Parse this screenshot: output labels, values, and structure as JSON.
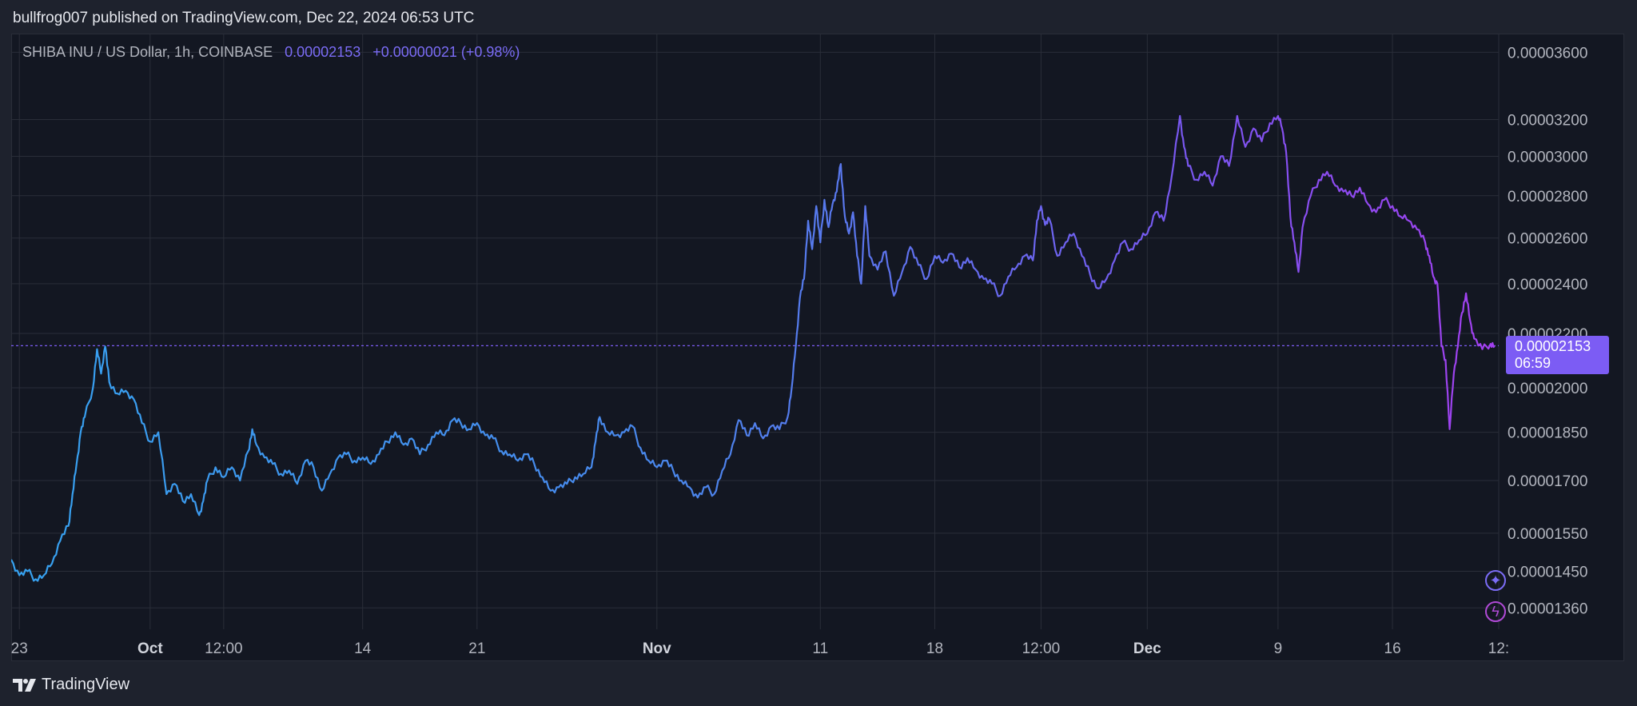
{
  "header": {
    "published_text": "bullfrog007 published on TradingView.com, Dec 22, 2024 06:53 UTC"
  },
  "legend": {
    "symbol": "SHIBA INU / US Dollar, 1h, COINBASE",
    "price": "0.00002153",
    "change": "+0.00000021 (+0.98%)",
    "color": "#7b6cf6"
  },
  "last_price_badge": {
    "price": "0.00002153",
    "countdown": "06:59",
    "color": "#7c5cf4"
  },
  "footer": {
    "brand": "TradingView"
  },
  "icons": [
    "sparkle-icon",
    "lightning-icon"
  ],
  "colors": {
    "background": "#131722",
    "line_start": "#36a2f0",
    "line_mid": "#7b55f0",
    "line_end": "#a53ff0"
  },
  "chart_data": {
    "type": "line",
    "scale": "log",
    "y_ticks": [
      "0.00003600",
      "0.00003200",
      "0.00003000",
      "0.00002800",
      "0.00002600",
      "0.00002400",
      "0.00002200",
      "0.00002000",
      "0.00001850",
      "0.00001700",
      "0.00001550",
      "0.00001450",
      "0.00001360"
    ],
    "ylim": [
      1.31e-05,
      3.72e-05
    ],
    "x_ticks": [
      {
        "label": "23",
        "date": "2024-09-23",
        "bold": false
      },
      {
        "label": "Oct",
        "date": "2024-10-01",
        "bold": true
      },
      {
        "label": "12:00",
        "date": "2024-10-05T12:00",
        "bold": false
      },
      {
        "label": "14",
        "date": "2024-10-14",
        "bold": false
      },
      {
        "label": "21",
        "date": "2024-10-21",
        "bold": false
      },
      {
        "label": "Nov",
        "date": "2024-11-01",
        "bold": true
      },
      {
        "label": "11",
        "date": "2024-11-11",
        "bold": false
      },
      {
        "label": "18",
        "date": "2024-11-18",
        "bold": false
      },
      {
        "label": "12:00",
        "date": "2024-11-24T12:00",
        "bold": false
      },
      {
        "label": "Dec",
        "date": "2024-12-01",
        "bold": true
      },
      {
        "label": "9",
        "date": "2024-12-09",
        "bold": false
      },
      {
        "label": "16",
        "date": "2024-12-16",
        "bold": false
      },
      {
        "label": "12:",
        "date": "2024-12-22T12:00",
        "bold": false
      }
    ],
    "xlim": [
      "2024-09-22T12:00",
      "2024-12-22T12:00"
    ],
    "last_value": 2.153e-05,
    "series": [
      {
        "points": [
          [
            "2024-09-22T12:00",
            1.48e-05
          ],
          [
            "2024-09-23",
            1.44e-05
          ],
          [
            "2024-09-23T12:00",
            1.45e-05
          ],
          [
            "2024-09-24",
            1.43e-05
          ],
          [
            "2024-09-24T12:00",
            1.44e-05
          ],
          [
            "2024-09-25",
            1.47e-05
          ],
          [
            "2024-09-25T12:00",
            1.53e-05
          ],
          [
            "2024-09-26",
            1.57e-05
          ],
          [
            "2024-09-26T06:00",
            1.66e-05
          ],
          [
            "2024-09-26T12:00",
            1.75e-05
          ],
          [
            "2024-09-26T18:00",
            1.85e-05
          ],
          [
            "2024-09-27",
            1.9e-05
          ],
          [
            "2024-09-27T12:00",
            2e-05
          ],
          [
            "2024-09-27T18:00",
            2.14e-05
          ],
          [
            "2024-09-28",
            2.05e-05
          ],
          [
            "2024-09-28T06:00",
            2.15e-05
          ],
          [
            "2024-09-28T12:00",
            2.02e-05
          ],
          [
            "2024-09-29",
            1.98e-05
          ],
          [
            "2024-09-29T12:00",
            1.99e-05
          ],
          [
            "2024-09-30",
            1.96e-05
          ],
          [
            "2024-09-30T12:00",
            1.88e-05
          ],
          [
            "2024-10-01",
            1.82e-05
          ],
          [
            "2024-10-01T12:00",
            1.85e-05
          ],
          [
            "2024-10-02",
            1.66e-05
          ],
          [
            "2024-10-02T12:00",
            1.69e-05
          ],
          [
            "2024-10-03",
            1.64e-05
          ],
          [
            "2024-10-03T12:00",
            1.66e-05
          ],
          [
            "2024-10-04",
            1.6e-05
          ],
          [
            "2024-10-04T06:00",
            1.64e-05
          ],
          [
            "2024-10-04T12:00",
            1.7e-05
          ],
          [
            "2024-10-05",
            1.74e-05
          ],
          [
            "2024-10-05T12:00",
            1.71e-05
          ],
          [
            "2024-10-06",
            1.74e-05
          ],
          [
            "2024-10-06T12:00",
            1.7e-05
          ],
          [
            "2024-10-07",
            1.79e-05
          ],
          [
            "2024-10-07T06:00",
            1.86e-05
          ],
          [
            "2024-10-07T12:00",
            1.81e-05
          ],
          [
            "2024-10-08",
            1.77e-05
          ],
          [
            "2024-10-08T12:00",
            1.75e-05
          ],
          [
            "2024-10-09",
            1.72e-05
          ],
          [
            "2024-10-09T12:00",
            1.73e-05
          ],
          [
            "2024-10-10",
            1.69e-05
          ],
          [
            "2024-10-10T12:00",
            1.76e-05
          ],
          [
            "2024-10-11",
            1.74e-05
          ],
          [
            "2024-10-11T12:00",
            1.67e-05
          ],
          [
            "2024-10-12",
            1.72e-05
          ],
          [
            "2024-10-12T12:00",
            1.77e-05
          ],
          [
            "2024-10-13",
            1.78e-05
          ],
          [
            "2024-10-13T12:00",
            1.76e-05
          ],
          [
            "2024-10-14",
            1.77e-05
          ],
          [
            "2024-10-14T12:00",
            1.75e-05
          ],
          [
            "2024-10-15",
            1.78e-05
          ],
          [
            "2024-10-15T12:00",
            1.82e-05
          ],
          [
            "2024-10-16",
            1.85e-05
          ],
          [
            "2024-10-16T12:00",
            1.81e-05
          ],
          [
            "2024-10-17",
            1.83e-05
          ],
          [
            "2024-10-17T12:00",
            1.78e-05
          ],
          [
            "2024-10-18",
            1.81e-05
          ],
          [
            "2024-10-18T12:00",
            1.85e-05
          ],
          [
            "2024-10-19",
            1.84e-05
          ],
          [
            "2024-10-19T12:00",
            1.89e-05
          ],
          [
            "2024-10-20",
            1.88e-05
          ],
          [
            "2024-10-20T12:00",
            1.86e-05
          ],
          [
            "2024-10-21",
            1.88e-05
          ],
          [
            "2024-10-21T12:00",
            1.84e-05
          ],
          [
            "2024-10-22",
            1.83e-05
          ],
          [
            "2024-10-22T12:00",
            1.79e-05
          ],
          [
            "2024-10-23",
            1.78e-05
          ],
          [
            "2024-10-23T12:00",
            1.76e-05
          ],
          [
            "2024-10-24",
            1.78e-05
          ],
          [
            "2024-10-24T12:00",
            1.75e-05
          ],
          [
            "2024-10-25",
            1.71e-05
          ],
          [
            "2024-10-25T12:00",
            1.67e-05
          ],
          [
            "2024-10-26",
            1.68e-05
          ],
          [
            "2024-10-26T12:00",
            1.69e-05
          ],
          [
            "2024-10-27",
            1.71e-05
          ],
          [
            "2024-10-27T12:00",
            1.72e-05
          ],
          [
            "2024-10-28",
            1.74e-05
          ],
          [
            "2024-10-28T06:00",
            1.82e-05
          ],
          [
            "2024-10-28T12:00",
            1.9e-05
          ],
          [
            "2024-10-29",
            1.85e-05
          ],
          [
            "2024-10-29T12:00",
            1.84e-05
          ],
          [
            "2024-10-30",
            1.85e-05
          ],
          [
            "2024-10-30T12:00",
            1.87e-05
          ],
          [
            "2024-10-31",
            1.8e-05
          ],
          [
            "2024-10-31T12:00",
            1.76e-05
          ],
          [
            "2024-11-01",
            1.74e-05
          ],
          [
            "2024-11-01T12:00",
            1.76e-05
          ],
          [
            "2024-11-02",
            1.73e-05
          ],
          [
            "2024-11-02T12:00",
            1.7e-05
          ],
          [
            "2024-11-03",
            1.68e-05
          ],
          [
            "2024-11-03T12:00",
            1.65e-05
          ],
          [
            "2024-11-04",
            1.68e-05
          ],
          [
            "2024-11-04T12:00",
            1.66e-05
          ],
          [
            "2024-11-05",
            1.73e-05
          ],
          [
            "2024-11-05T12:00",
            1.78e-05
          ],
          [
            "2024-11-06",
            1.89e-05
          ],
          [
            "2024-11-06T12:00",
            1.84e-05
          ],
          [
            "2024-11-07",
            1.88e-05
          ],
          [
            "2024-11-07T12:00",
            1.83e-05
          ],
          [
            "2024-11-08",
            1.87e-05
          ],
          [
            "2024-11-08T12:00",
            1.86e-05
          ],
          [
            "2024-11-09",
            1.9e-05
          ],
          [
            "2024-11-09T06:00",
            2e-05
          ],
          [
            "2024-11-09T12:00",
            2.15e-05
          ],
          [
            "2024-11-09T18:00",
            2.34e-05
          ],
          [
            "2024-11-10",
            2.42e-05
          ],
          [
            "2024-11-10T06:00",
            2.68e-05
          ],
          [
            "2024-11-10T12:00",
            2.55e-05
          ],
          [
            "2024-11-10T18:00",
            2.75e-05
          ],
          [
            "2024-11-11",
            2.58e-05
          ],
          [
            "2024-11-11T06:00",
            2.78e-05
          ],
          [
            "2024-11-11T12:00",
            2.65e-05
          ],
          [
            "2024-11-11T18:00",
            2.76e-05
          ],
          [
            "2024-11-12",
            2.82e-05
          ],
          [
            "2024-11-12T06:00",
            2.96e-05
          ],
          [
            "2024-11-12T12:00",
            2.7e-05
          ],
          [
            "2024-11-12T18:00",
            2.62e-05
          ],
          [
            "2024-11-13",
            2.72e-05
          ],
          [
            "2024-11-13T06:00",
            2.52e-05
          ],
          [
            "2024-11-13T12:00",
            2.4e-05
          ],
          [
            "2024-11-13T18:00",
            2.75e-05
          ],
          [
            "2024-11-14",
            2.52e-05
          ],
          [
            "2024-11-14T12:00",
            2.46e-05
          ],
          [
            "2024-11-15",
            2.54e-05
          ],
          [
            "2024-11-15T12:00",
            2.35e-05
          ],
          [
            "2024-11-16",
            2.45e-05
          ],
          [
            "2024-11-16T12:00",
            2.56e-05
          ],
          [
            "2024-11-17",
            2.48e-05
          ],
          [
            "2024-11-17T12:00",
            2.42e-05
          ],
          [
            "2024-11-18",
            2.52e-05
          ],
          [
            "2024-11-18T12:00",
            2.49e-05
          ],
          [
            "2024-11-19",
            2.53e-05
          ],
          [
            "2024-11-19T12:00",
            2.47e-05
          ],
          [
            "2024-11-20",
            2.51e-05
          ],
          [
            "2024-11-20T12:00",
            2.46e-05
          ],
          [
            "2024-11-21",
            2.42e-05
          ],
          [
            "2024-11-21T12:00",
            2.4e-05
          ],
          [
            "2024-11-22",
            2.35e-05
          ],
          [
            "2024-11-22T12:00",
            2.43e-05
          ],
          [
            "2024-11-23",
            2.47e-05
          ],
          [
            "2024-11-23T12:00",
            2.52e-05
          ],
          [
            "2024-11-24",
            2.5e-05
          ],
          [
            "2024-11-24T06:00",
            2.68e-05
          ],
          [
            "2024-11-24T12:00",
            2.75e-05
          ],
          [
            "2024-11-24T18:00",
            2.66e-05
          ],
          [
            "2024-11-25",
            2.69e-05
          ],
          [
            "2024-11-25T12:00",
            2.52e-05
          ],
          [
            "2024-11-26",
            2.58e-05
          ],
          [
            "2024-11-26T12:00",
            2.62e-05
          ],
          [
            "2024-11-27",
            2.52e-05
          ],
          [
            "2024-11-27T12:00",
            2.44e-05
          ],
          [
            "2024-11-28",
            2.38e-05
          ],
          [
            "2024-11-28T12:00",
            2.42e-05
          ],
          [
            "2024-11-29",
            2.5e-05
          ],
          [
            "2024-11-29T12:00",
            2.58e-05
          ],
          [
            "2024-11-30",
            2.55e-05
          ],
          [
            "2024-11-30T12:00",
            2.59e-05
          ],
          [
            "2024-12-01",
            2.62e-05
          ],
          [
            "2024-12-01T12:00",
            2.72e-05
          ],
          [
            "2024-12-02",
            2.68e-05
          ],
          [
            "2024-12-02T12:00",
            2.9e-05
          ],
          [
            "2024-12-03",
            3.22e-05
          ],
          [
            "2024-12-03T06:00",
            3.05e-05
          ],
          [
            "2024-12-03T12:00",
            2.95e-05
          ],
          [
            "2024-12-04",
            2.88e-05
          ],
          [
            "2024-12-04T12:00",
            2.92e-05
          ],
          [
            "2024-12-05",
            2.85e-05
          ],
          [
            "2024-12-05T12:00",
            3e-05
          ],
          [
            "2024-12-06",
            2.95e-05
          ],
          [
            "2024-12-06T12:00",
            3.22e-05
          ],
          [
            "2024-12-07",
            3.05e-05
          ],
          [
            "2024-12-07T12:00",
            3.15e-05
          ],
          [
            "2024-12-08",
            3.08e-05
          ],
          [
            "2024-12-08T12:00",
            3.18e-05
          ],
          [
            "2024-12-09",
            3.22e-05
          ],
          [
            "2024-12-09T06:00",
            3.15e-05
          ],
          [
            "2024-12-09T12:00",
            3.02e-05
          ],
          [
            "2024-12-09T18:00",
            2.7e-05
          ],
          [
            "2024-12-10",
            2.58e-05
          ],
          [
            "2024-12-10T06:00",
            2.45e-05
          ],
          [
            "2024-12-10T12:00",
            2.65e-05
          ],
          [
            "2024-12-11",
            2.8e-05
          ],
          [
            "2024-12-11T12:00",
            2.88e-05
          ],
          [
            "2024-12-12",
            2.92e-05
          ],
          [
            "2024-12-12T12:00",
            2.85e-05
          ],
          [
            "2024-12-13",
            2.82e-05
          ],
          [
            "2024-12-13T12:00",
            2.8e-05
          ],
          [
            "2024-12-14",
            2.84e-05
          ],
          [
            "2024-12-14T12:00",
            2.76e-05
          ],
          [
            "2024-12-15",
            2.72e-05
          ],
          [
            "2024-12-15T12:00",
            2.78e-05
          ],
          [
            "2024-12-16",
            2.75e-05
          ],
          [
            "2024-12-16T12:00",
            2.7e-05
          ],
          [
            "2024-12-17",
            2.68e-05
          ],
          [
            "2024-12-17T12:00",
            2.64e-05
          ],
          [
            "2024-12-18",
            2.58e-05
          ],
          [
            "2024-12-18T06:00",
            2.52e-05
          ],
          [
            "2024-12-18T12:00",
            2.43e-05
          ],
          [
            "2024-12-18T18:00",
            2.4e-05
          ],
          [
            "2024-12-19",
            2.15e-05
          ],
          [
            "2024-12-19T06:00",
            2.1e-05
          ],
          [
            "2024-12-19T12:00",
            1.86e-05
          ],
          [
            "2024-12-19T18:00",
            2.05e-05
          ],
          [
            "2024-12-20",
            2.15e-05
          ],
          [
            "2024-12-20T06:00",
            2.28e-05
          ],
          [
            "2024-12-20T12:00",
            2.36e-05
          ],
          [
            "2024-12-20T18:00",
            2.25e-05
          ],
          [
            "2024-12-21",
            2.18e-05
          ],
          [
            "2024-12-21T12:00",
            2.14e-05
          ],
          [
            "2024-12-22",
            2.16e-05
          ],
          [
            "2024-12-22T06:00",
            2.153e-05
          ]
        ]
      }
    ]
  }
}
